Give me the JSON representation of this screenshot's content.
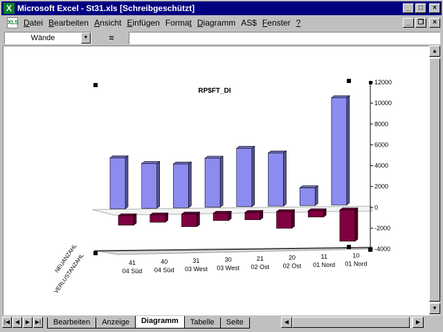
{
  "window": {
    "title": "Microsoft Excel - St31.xls  [Schreibgeschützt]",
    "app_icon": "excel-icon",
    "doc_icon": "xls-document-icon",
    "caption_buttons": {
      "minimize": "_",
      "maximize": "□",
      "close": "×"
    },
    "doc_buttons": {
      "minimize": "_",
      "restore": "❐",
      "close": "×"
    }
  },
  "menu": {
    "items": [
      {
        "underline": "D",
        "rest": "atei"
      },
      {
        "underline": "B",
        "rest": "earbeiten"
      },
      {
        "underline": "A",
        "rest": "nsicht"
      },
      {
        "underline": "E",
        "rest": "infügen"
      },
      {
        "underline": "",
        "rest": "Format",
        "pre": "Forma",
        "ul2": "t"
      },
      {
        "underline": "D",
        "rest": "iagramm"
      },
      {
        "underline": "",
        "rest": "AS$"
      },
      {
        "underline": "F",
        "rest": "enster"
      },
      {
        "underline": "?",
        "rest": ""
      }
    ]
  },
  "formula_bar": {
    "name_box": "Wände",
    "equals": "=",
    "value": ""
  },
  "sheet_tabs": [
    "Bearbeiten",
    "Anzeige",
    "Diagramm",
    "Tabelle",
    "Seite"
  ],
  "active_tab": "Diagramm",
  "chart_data": {
    "type": "bar",
    "title": "RP$FT_DI",
    "categories": [
      [
        "41",
        "04 Süd"
      ],
      [
        "40",
        "04 Süd"
      ],
      [
        "31",
        "03 West"
      ],
      [
        "30",
        "03 West"
      ],
      [
        "21",
        "02 Ost"
      ],
      [
        "20",
        "02 Ost"
      ],
      [
        "11",
        "01 Nord"
      ],
      [
        "10",
        "01 Nord"
      ]
    ],
    "series": [
      {
        "name": "NEUANZAHL",
        "color": "#8c8cf0",
        "values": [
          4900,
          4300,
          4200,
          4700,
          5600,
          5100,
          1700,
          10300
        ]
      },
      {
        "name": "VERLUSTANZAHL",
        "color": "#800040",
        "values": [
          -900,
          -700,
          -1200,
          -700,
          -700,
          -1600,
          -600,
          -3000
        ]
      }
    ],
    "z_labels": [
      "NEUANZAHL",
      "VERLUSTANZAHL"
    ],
    "y_ticks": [
      "12000",
      "10000",
      "8000",
      "6000",
      "4000",
      "2000",
      "0",
      "-2000",
      "-4000"
    ],
    "ylim": [
      -4000,
      12000
    ]
  }
}
